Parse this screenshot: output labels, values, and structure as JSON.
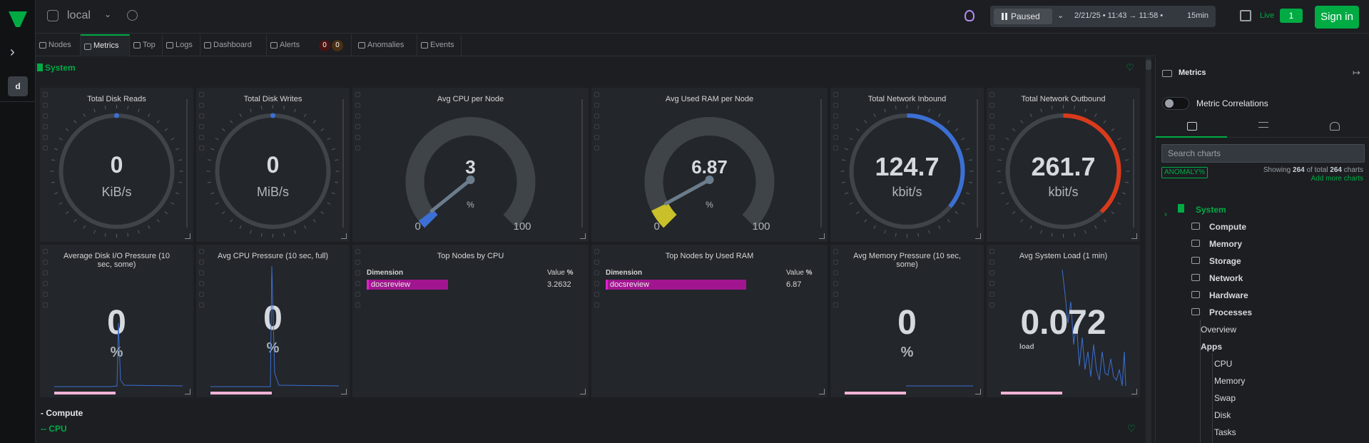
{
  "topbar": {
    "space_name": "local",
    "paused_label": "Paused",
    "time_range": "2/21/25 • 11:43 → 11:58 •",
    "duration": "15min",
    "live_label": "Live",
    "live_count": "1",
    "sign_in": "Sign in"
  },
  "leftbar": {
    "space_initial": "d"
  },
  "tabs": {
    "nodes": "Nodes",
    "metrics": "Metrics",
    "top": "Top",
    "logs": "Logs",
    "dashboard": "Dashboard",
    "alerts": "Alerts",
    "alerts_critical": "0",
    "alerts_warning": "0",
    "anomalies": "Anomalies",
    "events": "Events"
  },
  "section": {
    "title": "System"
  },
  "gauges": [
    {
      "title": "Total Disk Reads",
      "value": "0",
      "unit": "KiB/s",
      "fraction": 0
    },
    {
      "title": "Total Disk Writes",
      "value": "0",
      "unit": "MiB/s",
      "fraction": 0
    },
    {
      "title": "Avg CPU per Node",
      "value": "3",
      "unit": "%",
      "min": "0",
      "max": "100",
      "fraction": 0.03
    },
    {
      "title": "Avg Used RAM per Node",
      "value": "6.87",
      "unit": "%",
      "min": "0",
      "max": "100",
      "fraction": 0.0687
    },
    {
      "title": "Total Network Inbound",
      "value": "124.7",
      "unit": "kbit/s",
      "fraction": 0.36
    },
    {
      "title": "Total Network Outbound",
      "value": "261.7",
      "unit": "kbit/s",
      "fraction": 0.38
    }
  ],
  "row2": {
    "disk_pressure": {
      "title": "Average Disk I/O Pressure (10 sec, some)",
      "value": "0",
      "unit": "%"
    },
    "cpu_pressure": {
      "title": "Avg CPU Pressure (10 sec, full)",
      "value": "0",
      "unit": "%"
    },
    "top_cpu": {
      "title": "Top Nodes by CPU",
      "dim_header": "Dimension",
      "val_header": "Value",
      "val_unit": "%",
      "node": "docsreview",
      "value": "3.2632"
    },
    "top_ram": {
      "title": "Top Nodes by Used RAM",
      "dim_header": "Dimension",
      "val_header": "Value",
      "val_unit": "%",
      "node": "docsreview",
      "value": "6.87"
    },
    "mem_pressure": {
      "title": "Avg Memory Pressure (10 sec, some)",
      "value": "0",
      "unit": "%"
    },
    "load": {
      "title": "Avg System Load (1 min)",
      "value": "0.072",
      "unit": "load"
    }
  },
  "below": {
    "compute": "- Compute",
    "cpu": "-- CPU"
  },
  "right_panel": {
    "title": "Metrics",
    "toggle_label": "Metric Correlations",
    "search_placeholder": "Search charts",
    "anomaly_badge": "ANOMALY%",
    "showing_prefix": "Showing",
    "showing_count": "264",
    "showing_mid": "of total",
    "showing_total": "264",
    "showing_suffix": "charts",
    "add_more": "Add more charts",
    "tree": {
      "system": "System",
      "compute": "Compute",
      "memory": "Memory",
      "storage": "Storage",
      "network": "Network",
      "hardware": "Hardware",
      "processes": "Processes",
      "overview": "Overview",
      "apps": "Apps",
      "apps_cpu": "CPU",
      "apps_memory": "Memory",
      "apps_swap": "Swap",
      "apps_disk": "Disk",
      "apps_tasks": "Tasks"
    }
  },
  "colors": {
    "accent": "#00ab44",
    "inbound": "#3b6fd4",
    "outbound": "#d93a1c",
    "ram": "#c9c02a",
    "cpu": "#3b6fd4"
  }
}
